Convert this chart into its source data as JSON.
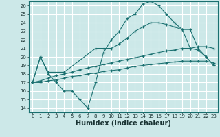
{
  "xlabel": "Humidex (Indice chaleur)",
  "xlim": [
    -0.5,
    23.5
  ],
  "ylim": [
    13.5,
    26.5
  ],
  "xticks": [
    0,
    1,
    2,
    3,
    4,
    5,
    6,
    7,
    8,
    9,
    10,
    11,
    12,
    13,
    14,
    15,
    16,
    17,
    18,
    19,
    20,
    21,
    22,
    23
  ],
  "yticks": [
    14,
    15,
    16,
    17,
    18,
    19,
    20,
    21,
    22,
    23,
    24,
    25,
    26
  ],
  "background_color": "#cce8e8",
  "grid_color": "#ffffff",
  "line_color": "#1a7070",
  "lines": [
    {
      "x": [
        0,
        1,
        2,
        3,
        4,
        5,
        6,
        7,
        8,
        9,
        10,
        11,
        12,
        13,
        14,
        15,
        16,
        17,
        18,
        19,
        20,
        21,
        22,
        23
      ],
      "y": [
        17.0,
        20.0,
        18.0,
        17.0,
        16.0,
        16.0,
        15.0,
        14.0,
        17.0,
        20.5,
        22.0,
        23.0,
        24.5,
        25.0,
        26.2,
        26.5,
        26.0,
        25.0,
        24.0,
        23.2,
        21.0,
        20.8,
        20.0,
        19.0
      ]
    },
    {
      "x": [
        0,
        1,
        2,
        4,
        8,
        9,
        10,
        11,
        12,
        13,
        14,
        15,
        16,
        17,
        18,
        19,
        20,
        21,
        22,
        23
      ],
      "y": [
        17.0,
        20.0,
        18.2,
        18.2,
        21.0,
        21.0,
        21.0,
        21.5,
        22.2,
        23.0,
        23.5,
        24.0,
        24.0,
        23.8,
        23.5,
        23.2,
        23.2,
        21.0,
        20.0,
        19.0
      ]
    },
    {
      "x": [
        0,
        1,
        2,
        3,
        4,
        5,
        6,
        7,
        8,
        9,
        10,
        11,
        12,
        13,
        14,
        15,
        16,
        17,
        18,
        19,
        20,
        21,
        22,
        23
      ],
      "y": [
        17.0,
        17.2,
        17.5,
        17.8,
        18.0,
        18.2,
        18.5,
        18.7,
        18.9,
        19.1,
        19.3,
        19.5,
        19.7,
        19.9,
        20.1,
        20.3,
        20.5,
        20.7,
        20.8,
        21.0,
        21.0,
        21.2,
        21.2,
        21.0
      ]
    },
    {
      "x": [
        0,
        1,
        2,
        3,
        4,
        5,
        6,
        7,
        8,
        9,
        10,
        11,
        12,
        13,
        14,
        15,
        16,
        17,
        18,
        19,
        20,
        21,
        22,
        23
      ],
      "y": [
        17.0,
        17.0,
        17.2,
        17.3,
        17.5,
        17.7,
        17.8,
        18.0,
        18.1,
        18.3,
        18.4,
        18.5,
        18.7,
        18.9,
        19.0,
        19.1,
        19.2,
        19.3,
        19.4,
        19.5,
        19.5,
        19.5,
        19.5,
        19.3
      ]
    }
  ],
  "xlabel_fontsize": 7,
  "xlabel_fontweight": "bold",
  "tick_fontsize": 5,
  "tick_color": "#1a3333"
}
